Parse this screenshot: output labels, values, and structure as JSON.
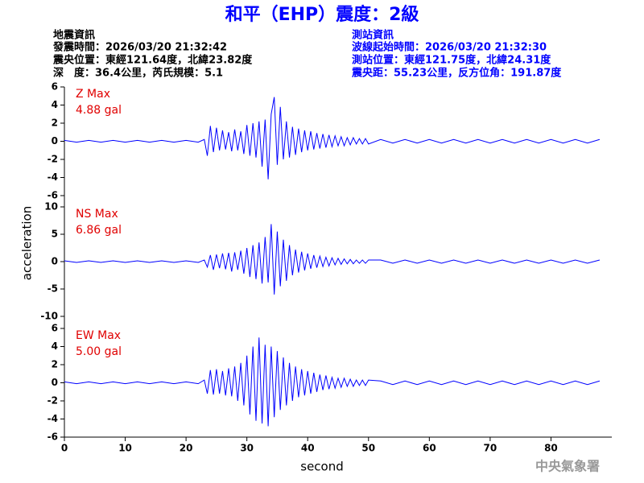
{
  "header": {
    "title": "和平（EHP）震度：2級",
    "left": [
      "地震資訊",
      "發震時間：2026/03/20 21:32:42",
      "震央位置：東經121.64度，北緯23.82度",
      "深　度：36.4公里，芮氏規模：5.1"
    ],
    "right": [
      "測站資訊",
      "波線起始時間：2026/03/20 21:32:30",
      "測站位置：東經121.75度，北緯24.31度",
      "震央距：55.23公里，反方位角：191.87度"
    ]
  },
  "footer": "中央氣象署",
  "chart_data": {
    "type": "line",
    "xlabel": "second",
    "ylabel": "acceleration",
    "xlim": [
      0,
      90
    ],
    "xticks": [
      0,
      10,
      20,
      30,
      40,
      50,
      60,
      70,
      80
    ],
    "x": [
      0,
      2,
      4,
      6,
      8,
      10,
      12,
      14,
      16,
      18,
      20,
      22,
      23,
      23.5,
      24,
      24.5,
      25,
      25.5,
      26,
      26.5,
      27,
      27.5,
      28,
      28.5,
      29,
      29.5,
      30,
      30.5,
      31,
      31.5,
      32,
      32.5,
      33,
      33.5,
      34,
      34.5,
      35,
      35.5,
      36,
      36.5,
      37,
      37.5,
      38,
      38.5,
      39,
      39.5,
      40,
      40.5,
      41,
      41.5,
      42,
      42.5,
      43,
      43.5,
      44,
      44.5,
      45,
      45.5,
      46,
      46.5,
      47,
      47.5,
      48,
      48.5,
      49,
      49.5,
      50,
      52,
      54,
      56,
      58,
      60,
      62,
      64,
      66,
      68,
      70,
      72,
      74,
      76,
      78,
      80,
      82,
      84,
      86,
      88
    ],
    "panels": [
      {
        "label": "Z Max",
        "max_label": "4.88 gal",
        "color": "#0000ff",
        "ylim": [
          -6,
          6
        ],
        "yticks": [
          -6,
          -4,
          -2,
          0,
          2,
          4,
          6
        ],
        "values": [
          0.1,
          -0.1,
          0.1,
          -0.1,
          0.1,
          -0.1,
          0.1,
          -0.1,
          0.1,
          -0.1,
          0.1,
          -0.1,
          0.2,
          -1.6,
          1.7,
          -1.2,
          1.5,
          -1.0,
          1.2,
          -0.9,
          1.0,
          -1.1,
          1.3,
          -1.0,
          1.1,
          -1.4,
          1.8,
          -1.6,
          2.0,
          -1.8,
          2.2,
          -2.8,
          2.4,
          -4.2,
          3.0,
          4.88,
          -2.6,
          3.8,
          -2.0,
          2.2,
          -1.8,
          1.6,
          -1.5,
          1.4,
          -1.2,
          1.2,
          -1.0,
          1.1,
          -0.9,
          0.9,
          -0.8,
          0.8,
          -0.7,
          0.7,
          -0.6,
          0.6,
          -0.5,
          0.5,
          -0.5,
          0.4,
          -0.4,
          0.4,
          -0.3,
          0.3,
          -0.3,
          0.3,
          -0.3,
          0.2,
          -0.2,
          0.2,
          -0.2,
          0.2,
          -0.2,
          0.2,
          -0.2,
          0.2,
          -0.2,
          0.2,
          -0.2,
          0.2,
          -0.2,
          0.2,
          -0.2,
          0.2,
          -0.2,
          0.2
        ]
      },
      {
        "label": "NS Max",
        "max_label": "6.86 gal",
        "color": "#0000ff",
        "ylim": [
          -10,
          10
        ],
        "yticks": [
          -10,
          -5,
          0,
          5,
          10
        ],
        "values": [
          0.15,
          -0.15,
          0.15,
          -0.15,
          0.15,
          -0.15,
          0.15,
          -0.15,
          0.15,
          -0.15,
          0.15,
          -0.15,
          0.3,
          -1.0,
          1.2,
          -1.5,
          1.3,
          -1.2,
          1.5,
          -1.4,
          1.6,
          -1.8,
          1.7,
          -1.5,
          2.0,
          -2.2,
          2.5,
          -2.8,
          3.0,
          -3.2,
          3.5,
          -4.0,
          4.5,
          -3.8,
          6.86,
          -6.0,
          5.5,
          -4.5,
          4.0,
          -3.5,
          3.0,
          -2.5,
          2.2,
          -2.0,
          1.8,
          -1.6,
          1.5,
          -1.3,
          1.2,
          -1.1,
          1.0,
          -0.9,
          0.8,
          -0.8,
          0.7,
          -0.6,
          0.6,
          -0.5,
          0.5,
          -0.4,
          0.4,
          -0.4,
          0.3,
          -0.3,
          0.3,
          -0.3,
          0.3,
          0.3,
          -0.3,
          0.3,
          -0.3,
          0.3,
          -0.3,
          0.3,
          -0.3,
          0.3,
          -0.3,
          0.3,
          -0.3,
          0.3,
          -0.3,
          0.3,
          -0.3,
          0.3,
          -0.3,
          0.3
        ]
      },
      {
        "label": "EW Max",
        "max_label": "5.00 gal",
        "color": "#0000ff",
        "ylim": [
          -6,
          6
        ],
        "yticks": [
          -6,
          -4,
          -2,
          0,
          2,
          4,
          6
        ],
        "values": [
          0.1,
          -0.1,
          0.1,
          -0.1,
          0.1,
          -0.1,
          0.1,
          -0.1,
          0.1,
          -0.1,
          0.1,
          -0.1,
          0.3,
          -1.2,
          1.4,
          -1.3,
          1.5,
          -1.2,
          1.3,
          -1.4,
          1.6,
          -1.5,
          1.8,
          -2.0,
          2.2,
          -2.5,
          3.0,
          -3.5,
          4.0,
          -4.2,
          5.0,
          -4.5,
          4.2,
          -4.8,
          4.0,
          -3.8,
          3.5,
          -3.0,
          2.8,
          -2.5,
          2.2,
          -2.0,
          1.8,
          -1.6,
          1.5,
          -1.4,
          1.3,
          -1.2,
          1.1,
          -1.0,
          0.9,
          -0.8,
          0.8,
          -0.7,
          0.6,
          -0.6,
          0.5,
          -0.5,
          0.5,
          -0.4,
          0.4,
          -0.4,
          0.3,
          -0.3,
          0.3,
          -0.3,
          0.3,
          0.2,
          -0.2,
          0.2,
          -0.2,
          0.2,
          -0.2,
          0.2,
          -0.2,
          0.2,
          -0.2,
          0.2,
          -0.2,
          0.2,
          -0.2,
          0.2,
          -0.2,
          0.2,
          -0.2,
          0.2
        ]
      }
    ]
  }
}
